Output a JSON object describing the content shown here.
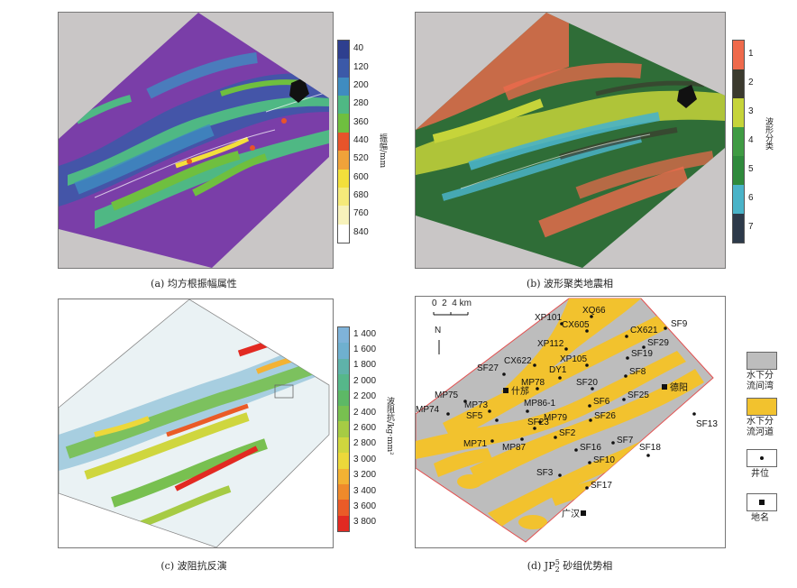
{
  "captions": {
    "a": "(a) 均方根振幅属性",
    "b": "(b) 波形聚类地震相",
    "c": "(c) 波阻抗反演",
    "d_main": "(d) JP",
    "d_sub": "2",
    "d_sup": "5",
    "d_tail": " 砂组优势相"
  },
  "colorbar_a": {
    "title": "振幅/mm",
    "labels": [
      "40",
      "120",
      "200",
      "280",
      "360",
      "440",
      "520",
      "600",
      "680",
      "760",
      "840"
    ],
    "colors": [
      "#2e3f8f",
      "#3b59a8",
      "#3f8cc0",
      "#4fb884",
      "#6fbf3f",
      "#e8542a",
      "#f0a23a",
      "#f3df3b",
      "#f5ea7a",
      "#f7f2bb",
      "#ffffff"
    ]
  },
  "colorbar_b": {
    "title": "波形分类",
    "labels": [
      "1",
      "2",
      "3",
      "4",
      "5",
      "6",
      "7"
    ],
    "colors": [
      "#ef6a4c",
      "#3b3a2e",
      "#c6d43a",
      "#3f9b43",
      "#2f8a3c",
      "#4ab3c8",
      "#2d3a4a"
    ]
  },
  "colorbar_c": {
    "title": "波阻抗/kg·mm²",
    "labels": [
      "1 400",
      "1 600",
      "1 800",
      "2 000",
      "2 200",
      "2 400",
      "2 600",
      "2 800",
      "3 000",
      "3 200",
      "3 400",
      "3 600",
      "3 800"
    ],
    "colors": [
      "#7fb3d9",
      "#6fb0cf",
      "#5fb2a9",
      "#56b78a",
      "#5db866",
      "#78c050",
      "#a6cb44",
      "#cfd63e",
      "#ecd83a",
      "#f3b233",
      "#ef8a2b",
      "#ea5b27",
      "#e22a22"
    ]
  },
  "map_d": {
    "scale_text": "0  2  4 km",
    "north": "N",
    "wells": [
      "XQ66",
      "XP101",
      "CX605",
      "CX621",
      "SF9",
      "XP112",
      "SF29",
      "SF19",
      "CX622",
      "XP105",
      "SF27",
      "DY1",
      "SF8",
      "MP78",
      "SF20",
      "MP75",
      "MP73",
      "MP86-1",
      "SF6",
      "SF25",
      "MP74",
      "SF5",
      "MP79",
      "SF26",
      "SF23",
      "SF2",
      "SF13",
      "MP71",
      "MP87",
      "SF16",
      "SF7",
      "SF18",
      "SF10",
      "SF3",
      "SF17"
    ],
    "places": [
      "什邡",
      "德阳",
      "广汉"
    ],
    "legend": [
      {
        "label_1": "水下分",
        "label_2": "流间湾",
        "color": "#bdbdbd"
      },
      {
        "label_1": "水下分",
        "label_2": "流河道",
        "color": "#f2c22e"
      },
      {
        "label_1": "井位",
        "label_2": ""
      },
      {
        "label_1": "地名",
        "label_2": ""
      }
    ]
  }
}
